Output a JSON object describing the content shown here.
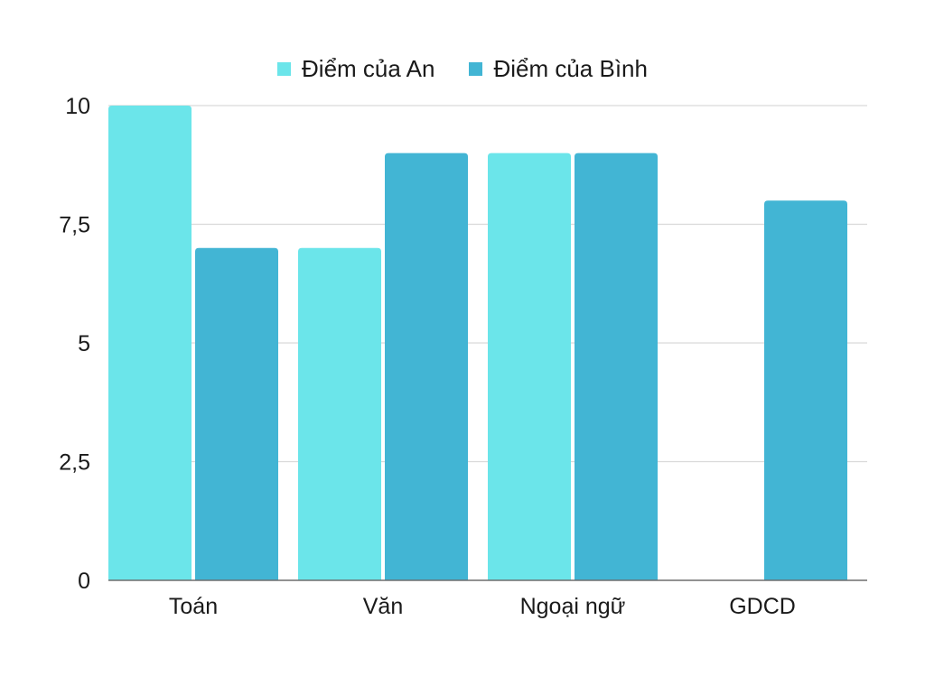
{
  "chart_data": {
    "type": "bar",
    "categories": [
      "Toán",
      "Văn",
      "Ngoại ngữ",
      "GDCD"
    ],
    "series": [
      {
        "name": "Điểm của An",
        "values": [
          10,
          7,
          9,
          null
        ],
        "color": "#6BE5EA"
      },
      {
        "name": "Điểm của Bình",
        "values": [
          7,
          9,
          9,
          8
        ],
        "color": "#42B5D4"
      }
    ],
    "ylim": [
      0,
      10
    ],
    "yticks": [
      0,
      2.5,
      5,
      7.5,
      10
    ],
    "ytick_labels": [
      "0",
      "2,5",
      "5",
      "7,5",
      "10"
    ],
    "grid": true,
    "legend_position": "top-center",
    "title": "",
    "xlabel": "",
    "ylabel": ""
  }
}
